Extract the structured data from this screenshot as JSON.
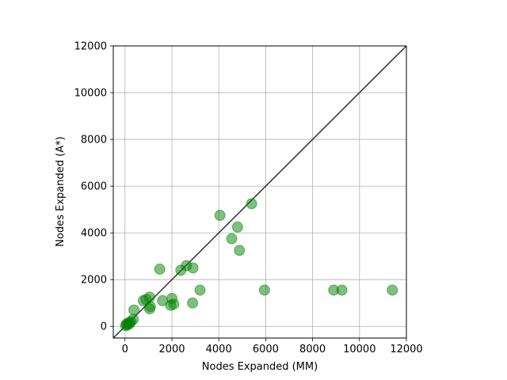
{
  "chart_data": {
    "type": "scatter",
    "title": "",
    "xlabel": "Nodes Expanded (MM)",
    "ylabel": "Nodes Expanded (A*)",
    "xlim": [
      -500,
      12000
    ],
    "ylim": [
      -500,
      12000
    ],
    "xticks": [
      0,
      2000,
      4000,
      6000,
      8000,
      10000,
      12000
    ],
    "yticks": [
      0,
      2000,
      4000,
      6000,
      8000,
      10000,
      12000
    ],
    "xtick_labels": [
      "0",
      "2000",
      "4000",
      "6000",
      "8000",
      "10000",
      "12000"
    ],
    "ytick_labels": [
      "0",
      "2000",
      "4000",
      "6000",
      "8000",
      "10000",
      "12000"
    ],
    "grid": true,
    "diagonal_reference_line": true,
    "marker_color": "#008000",
    "marker_alpha": 0.5,
    "line_color": "#333333",
    "points": [
      {
        "x": 30,
        "y": 30
      },
      {
        "x": 60,
        "y": 100
      },
      {
        "x": 100,
        "y": 60
      },
      {
        "x": 150,
        "y": 150
      },
      {
        "x": 200,
        "y": 120
      },
      {
        "x": 250,
        "y": 200
      },
      {
        "x": 350,
        "y": 300
      },
      {
        "x": 380,
        "y": 700
      },
      {
        "x": 780,
        "y": 1100
      },
      {
        "x": 900,
        "y": 1150
      },
      {
        "x": 1050,
        "y": 1250
      },
      {
        "x": 1050,
        "y": 750
      },
      {
        "x": 1080,
        "y": 850
      },
      {
        "x": 1480,
        "y": 2450
      },
      {
        "x": 1600,
        "y": 1100
      },
      {
        "x": 1950,
        "y": 900
      },
      {
        "x": 2000,
        "y": 1200
      },
      {
        "x": 2080,
        "y": 950
      },
      {
        "x": 2380,
        "y": 2400
      },
      {
        "x": 2620,
        "y": 2600
      },
      {
        "x": 2900,
        "y": 2500
      },
      {
        "x": 2880,
        "y": 1000
      },
      {
        "x": 3200,
        "y": 1550
      },
      {
        "x": 4050,
        "y": 4750
      },
      {
        "x": 4550,
        "y": 3750
      },
      {
        "x": 4800,
        "y": 4250
      },
      {
        "x": 4880,
        "y": 3250
      },
      {
        "x": 5400,
        "y": 5250
      },
      {
        "x": 5950,
        "y": 1550
      },
      {
        "x": 8900,
        "y": 1550
      },
      {
        "x": 9250,
        "y": 1550
      },
      {
        "x": 11400,
        "y": 1550
      }
    ]
  }
}
